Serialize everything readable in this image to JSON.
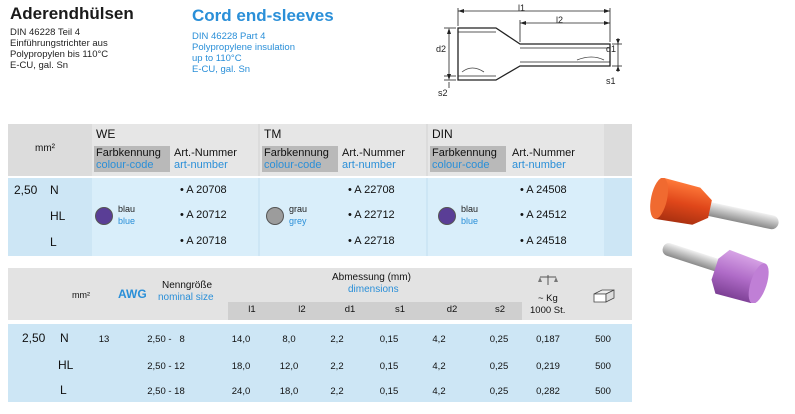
{
  "german": {
    "title": "Aderendhülsen",
    "lines": [
      "DIN 46228 Teil 4",
      "Einführungstrichter aus",
      "Polypropylen bis 110°C",
      "E-CU, gal. Sn"
    ]
  },
  "english": {
    "title": "Cord end-sleeves",
    "lines": [
      "DIN 46228 Part 4",
      "Polypropylene insulation",
      "up to 110°C",
      "E-CU, gal. Sn"
    ]
  },
  "drawing": {
    "l1": "l1",
    "l2": "l2",
    "d1": "d1",
    "d2": "d2",
    "s1": "s1",
    "s2": "s2"
  },
  "top_table": {
    "unit": "mm²",
    "size_value": "2,50",
    "rows": [
      "N",
      "HL",
      "L"
    ],
    "groups": [
      {
        "name": "WE",
        "colour_de": "Farbkennung",
        "colour_en": "colour-code",
        "art_de": "Art.-Nummer",
        "art_en": "art-number",
        "color_name_de": "blau",
        "color_name_en": "blue",
        "swatch": "#5a3e96",
        "articles": [
          "• A 20708",
          "• A 20712",
          "• A 20718"
        ]
      },
      {
        "name": "TM",
        "colour_de": "Farbkennung",
        "colour_en": "colour-code",
        "art_de": "Art.-Nummer",
        "art_en": "art-number",
        "color_name_de": "grau",
        "color_name_en": "grey",
        "swatch": "#9c9c9c",
        "articles": [
          "• A 22708",
          "• A 22712",
          "• A 22718"
        ]
      },
      {
        "name": "DIN",
        "colour_de": "Farbkennung",
        "colour_en": "colour-code",
        "art_de": "Art.-Nummer",
        "art_en": "art-number",
        "color_name_de": "blau",
        "color_name_en": "blue",
        "swatch": "#5a3e96",
        "articles": [
          "• A 24508",
          "• A 24512",
          "• A 24518"
        ]
      }
    ]
  },
  "bottom_table": {
    "unit": "mm²",
    "awg": "AWG",
    "nominal_de": "Nenngröße",
    "nominal_en": "nominal size",
    "dims_de": "Abmessung (mm)",
    "dims_en": "dimensions",
    "weight_label": "~ Kg",
    "weight_sub": "1000 St.",
    "dim_headers": [
      "l1",
      "l2",
      "d1",
      "s1",
      "d2",
      "s2"
    ],
    "size_value": "2,50",
    "rows": [
      {
        "type": "N",
        "awg": "13",
        "nominal": "2,50 -   8",
        "l1": "14,0",
        "l2": "8,0",
        "d1": "2,2",
        "s1": "0,15",
        "d2": "4,2",
        "s2": "0,25",
        "kg": "0,187",
        "pack": "500"
      },
      {
        "type": "HL",
        "awg": "",
        "nominal": "2,50 - 12",
        "l1": "18,0",
        "l2": "12,0",
        "d1": "2,2",
        "s1": "0,15",
        "d2": "4,2",
        "s2": "0,25",
        "kg": "0,219",
        "pack": "500"
      },
      {
        "type": "L",
        "awg": "",
        "nominal": "2,50 - 18",
        "l1": "24,0",
        "l2": "18,0",
        "d1": "2,2",
        "s1": "0,15",
        "d2": "4,2",
        "s2": "0,25",
        "kg": "0,282",
        "pack": "500"
      }
    ]
  },
  "photos": {
    "sleeve1": "orange cord end-sleeve",
    "sleeve2": "violet cord end-sleeve"
  }
}
